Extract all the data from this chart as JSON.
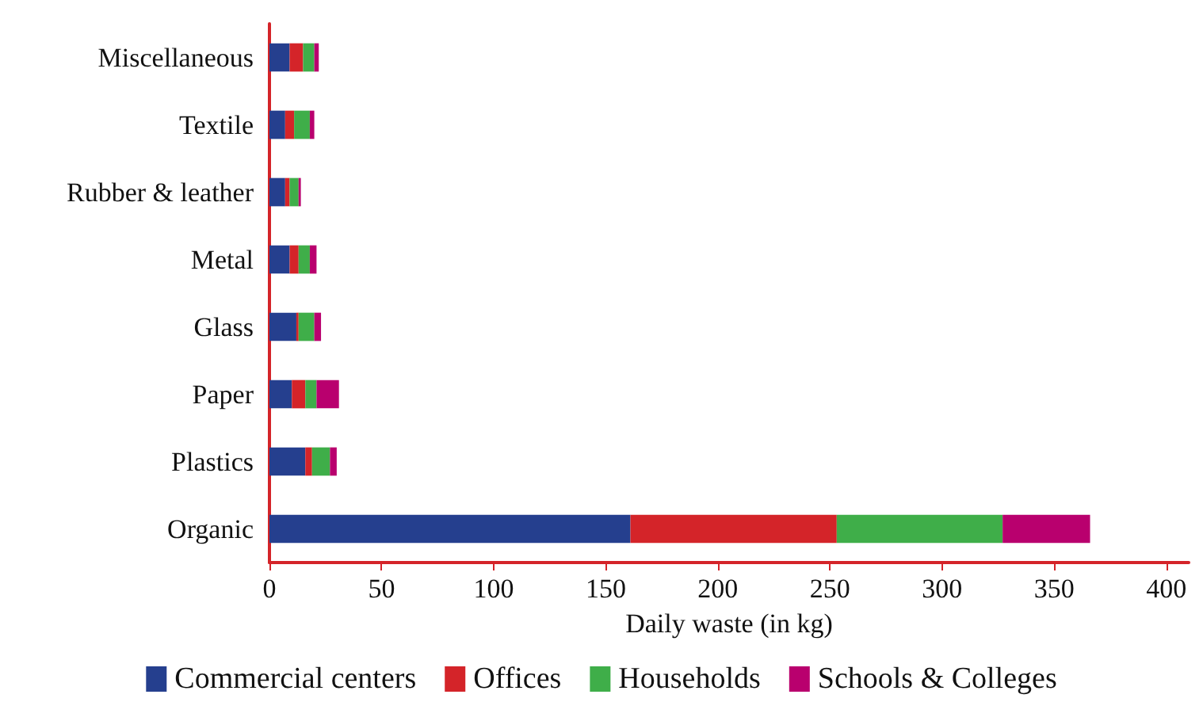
{
  "chart_data": {
    "type": "bar",
    "orientation": "horizontal",
    "stacked": true,
    "categories": [
      "Miscellaneous",
      "Textile",
      "Rubber & leather",
      "Metal",
      "Glass",
      "Paper",
      "Plastics",
      "Organic"
    ],
    "series": [
      {
        "name": "Commercial centers",
        "color": "#253f8e",
        "values": [
          9,
          7,
          7,
          9,
          12,
          10,
          16,
          161
        ]
      },
      {
        "name": "Offices",
        "color": "#d42429",
        "values": [
          6,
          4,
          2,
          4,
          1,
          6,
          3,
          92
        ]
      },
      {
        "name": "Households",
        "color": "#3fae49",
        "values": [
          5,
          7,
          4,
          5,
          7,
          5,
          8,
          74
        ]
      },
      {
        "name": "Schools & Colleges",
        "color": "#b9006e",
        "values": [
          2,
          2,
          1,
          3,
          3,
          10,
          3,
          39
        ]
      }
    ],
    "xlabel": "Daily waste (in kg)",
    "xlim": [
      0,
      410
    ],
    "xticks": [
      0,
      50,
      100,
      150,
      200,
      250,
      300,
      350,
      400
    ],
    "grid": false,
    "legend": "bottom"
  }
}
